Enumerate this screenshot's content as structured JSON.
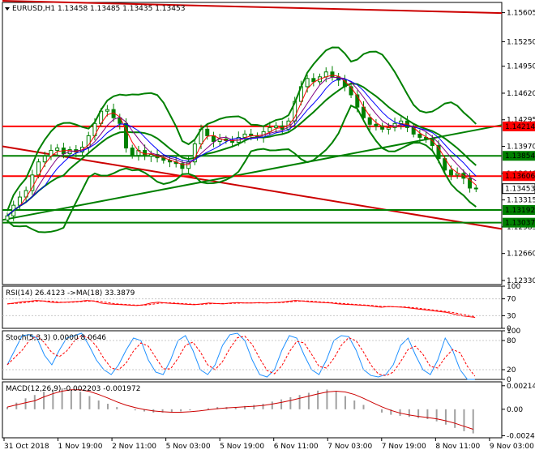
{
  "header": {
    "symbol_line": "EURUSD,H1  1.13458 1.13485 1.13435 1.13453",
    "rsi_label": "RSI(14) 26.4123  ->MA(18) 33.3879",
    "stoch_label": "Stoch(5,3,3) 0.0000 8.0646",
    "macd_label": "MACD(12,26,9) -0.002203 -0.001972"
  },
  "chart_data": {
    "type": "candlestick",
    "symbol": "EURUSD",
    "timeframe": "H1",
    "ohlc_last": {
      "open": 1.13458,
      "high": 1.13485,
      "low": 1.13435,
      "close": 1.13453
    },
    "y_ticks": [
      "1.15605",
      "1.15250",
      "1.14950",
      "1.14620",
      "1.14295",
      "1.13970",
      "1.13640",
      "1.13315",
      "1.12985",
      "1.12660",
      "1.12330"
    ],
    "y_range": [
      1.1228,
      1.1573
    ],
    "x_labels": [
      "31 Oct 2018",
      "1 Nov 19:00",
      "2 Nov 11:00",
      "5 Nov 03:00",
      "5 Nov 19:00",
      "6 Nov 11:00",
      "7 Nov 03:00",
      "7 Nov 19:00",
      "8 Nov 11:00",
      "9 Nov 03:00"
    ],
    "current_price_label": "1.13453",
    "levels": [
      {
        "label": "1.14214",
        "price": 1.14214,
        "color": "#ff0000"
      },
      {
        "label": "1.13854",
        "price": 1.13854,
        "color": "#008000"
      },
      {
        "label": "1.13606",
        "price": 1.13606,
        "color": "#ff0000"
      },
      {
        "label": "1.13192",
        "price": 1.13192,
        "color": "#008000"
      },
      {
        "label": "1.13037",
        "price": 1.13037,
        "color": "#008000"
      }
    ],
    "trendlines": [
      {
        "color": "#cc0000",
        "from": [
          0,
          1.1575
        ],
        "to": [
          100,
          1.156
        ]
      },
      {
        "color": "#cc0000",
        "from": [
          0,
          1.1397
        ],
        "to": [
          100,
          1.1296
        ]
      },
      {
        "color": "#008000",
        "from": [
          0,
          1.1307
        ],
        "to": [
          100,
          1.1423
        ]
      }
    ],
    "close_path": [
      1.1312,
      1.1325,
      1.1335,
      1.1343,
      1.1362,
      1.1378,
      1.1385,
      1.1392,
      1.1395,
      1.1388,
      1.1393,
      1.139,
      1.1396,
      1.141,
      1.1425,
      1.144,
      1.1442,
      1.1432,
      1.1425,
      1.1395,
      1.1386,
      1.1392,
      1.1385,
      1.1387,
      1.1383,
      1.138,
      1.1378,
      1.1376,
      1.137,
      1.1378,
      1.14,
      1.1418,
      1.141,
      1.1403,
      1.1406,
      1.1404,
      1.1402,
      1.1408,
      1.1412,
      1.141,
      1.1408,
      1.1415,
      1.142,
      1.1422,
      1.1418,
      1.1428,
      1.1452,
      1.147,
      1.148,
      1.1476,
      1.1482,
      1.1488,
      1.1482,
      1.1478,
      1.147,
      1.146,
      1.1445,
      1.1432,
      1.1424,
      1.1422,
      1.1418,
      1.142,
      1.1425,
      1.1428,
      1.142,
      1.1412,
      1.1408,
      1.1406,
      1.1398,
      1.1382,
      1.1368,
      1.1362,
      1.1364,
      1.1358,
      1.1346,
      1.1345
    ],
    "rsi": {
      "ticks": [
        "100",
        "70",
        "30",
        "0"
      ],
      "range": [
        0,
        100
      ],
      "value": 26.4123,
      "ma": 33.3879,
      "series": [
        58,
        60,
        63,
        64,
        66,
        65,
        62,
        61,
        62,
        63,
        64,
        66,
        65,
        60,
        58,
        57,
        56,
        55,
        54,
        56,
        60,
        62,
        60,
        59,
        58,
        57,
        56,
        58,
        60,
        59,
        58,
        60,
        61,
        60,
        60,
        61,
        60,
        61,
        62,
        64,
        66,
        65,
        63,
        62,
        61,
        60,
        58,
        57,
        56,
        55,
        54,
        52,
        50,
        52,
        51,
        50,
        48,
        46,
        44,
        42,
        40,
        38,
        34,
        30,
        28,
        26
      ]
    },
    "stoch": {
      "ticks": [
        "100",
        "80",
        "20",
        "0"
      ],
      "range": [
        0,
        100
      ],
      "main": 0.0,
      "signal": 8.0646,
      "series": [
        30,
        60,
        90,
        92,
        85,
        50,
        30,
        60,
        85,
        90,
        95,
        70,
        40,
        20,
        10,
        30,
        60,
        85,
        80,
        40,
        15,
        10,
        40,
        80,
        90,
        60,
        20,
        10,
        30,
        70,
        92,
        95,
        80,
        40,
        10,
        5,
        20,
        60,
        90,
        85,
        50,
        20,
        10,
        40,
        80,
        90,
        88,
        60,
        20,
        8,
        5,
        10,
        30,
        70,
        85,
        50,
        20,
        10,
        40,
        85,
        60,
        20,
        0,
        0
      ]
    },
    "macd": {
      "ticks": [
        "0.002145",
        "0.00",
        "-0.00241"
      ],
      "range": [
        -0.0026,
        0.0025
      ],
      "main": -0.002203,
      "signal": -0.001972,
      "series": [
        0.0002,
        0.0006,
        0.001,
        0.0013,
        0.0016,
        0.0018,
        0.0019,
        0.0018,
        0.0016,
        0.0012,
        0.0008,
        0.0005,
        0.0002,
        0.0,
        -0.0001,
        -0.0002,
        -0.0003,
        -0.0003,
        -0.0003,
        -0.0002,
        -0.0001,
        0.0,
        0.0001,
        0.0002,
        0.0002,
        0.0002,
        0.0003,
        0.0004,
        0.0005,
        0.0007,
        0.0009,
        0.0011,
        0.0013,
        0.0015,
        0.0017,
        0.0018,
        0.0016,
        0.0012,
        0.0008,
        0.0004,
        0.0,
        -0.0003,
        -0.0005,
        -0.0006,
        -0.0007,
        -0.0008,
        -0.0009,
        -0.0011,
        -0.0014,
        -0.0017,
        -0.002,
        -0.0022
      ]
    }
  },
  "colors": {
    "bg": "#ffffff",
    "frame": "#000000",
    "grid": "#c8c8c8",
    "bull": "#008000",
    "bear": "#008000",
    "bollinger": "#008000",
    "ma_fast": "#ff0000",
    "ma_slow": "#0000ff",
    "ma_mid": "#800080",
    "price_label_bg": "#ffffff",
    "current_label_bg": "#ffffff"
  }
}
